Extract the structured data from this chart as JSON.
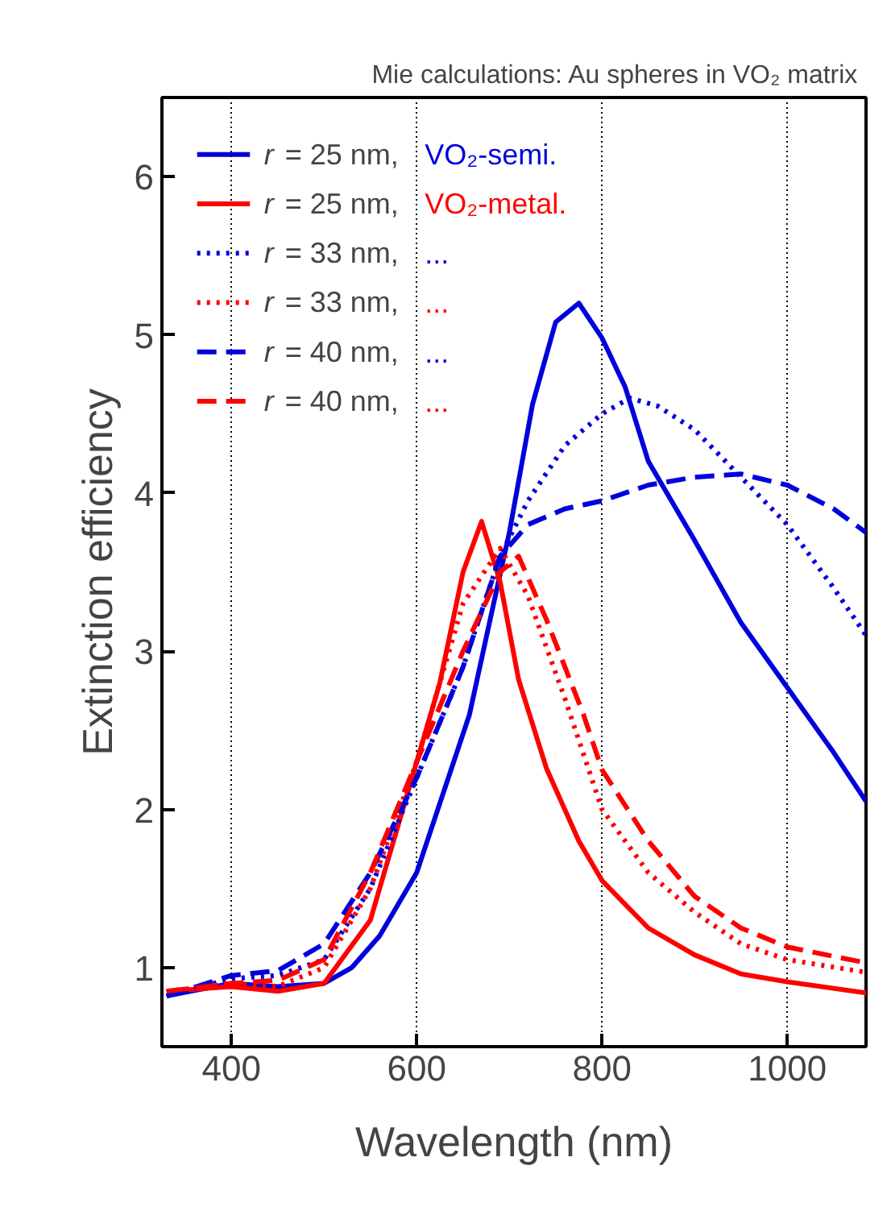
{
  "chart_data": {
    "type": "line",
    "title": "Mie calculations:  Au spheres in VO₂ matrix",
    "xlabel": "Wavelength (nm)",
    "ylabel": "Extinction efficiency",
    "xlim": [
      325,
      1085
    ],
    "ylim": [
      0.5,
      6.5
    ],
    "xticks": [
      400,
      600,
      800,
      1000
    ],
    "yticks": [
      1,
      2,
      3,
      4,
      5,
      6
    ],
    "grid": "x",
    "legend": "top left",
    "series": [
      {
        "name": "r = 25 nm, VO₂-semi.",
        "color": "#0000dd",
        "line_style": "solid",
        "x": [
          330,
          400,
          450,
          500,
          530,
          560,
          600,
          657,
          683,
          700,
          725,
          750,
          775,
          800,
          825,
          850,
          900,
          950,
          1000,
          1050,
          1085
        ],
        "values": [
          0.82,
          0.9,
          0.88,
          0.9,
          1.0,
          1.2,
          1.6,
          2.6,
          3.3,
          3.75,
          4.56,
          5.08,
          5.2,
          4.98,
          4.67,
          4.2,
          3.7,
          3.18,
          2.77,
          2.36,
          2.05
        ]
      },
      {
        "name": "r = 25 nm, VO₂-metal.",
        "color": "#ff0000",
        "line_style": "solid",
        "x": [
          330,
          400,
          450,
          500,
          550,
          600,
          625,
          650,
          670,
          690,
          710,
          740,
          775,
          800,
          825,
          850,
          900,
          950,
          1000,
          1085
        ],
        "values": [
          0.85,
          0.88,
          0.85,
          0.9,
          1.3,
          2.3,
          2.8,
          3.5,
          3.82,
          3.44,
          2.82,
          2.26,
          1.8,
          1.55,
          1.4,
          1.25,
          1.08,
          0.96,
          0.91,
          0.84
        ]
      },
      {
        "name": "r = 33 nm, ...",
        "color": "#0000dd",
        "line_style": "dotted",
        "x": [
          330,
          400,
          450,
          500,
          550,
          600,
          650,
          690,
          720,
          760,
          800,
          830,
          860,
          900,
          950,
          1000,
          1050,
          1085
        ],
        "values": [
          0.82,
          0.93,
          0.95,
          1.05,
          1.5,
          2.2,
          2.9,
          3.6,
          3.95,
          4.3,
          4.5,
          4.6,
          4.55,
          4.4,
          4.1,
          3.8,
          3.4,
          3.1
        ]
      },
      {
        "name": "r = 33 nm, ...",
        "color": "#ff0000",
        "line_style": "dotted",
        "x": [
          330,
          400,
          450,
          500,
          550,
          600,
          650,
          690,
          720,
          760,
          800,
          850,
          900,
          950,
          1000,
          1085
        ],
        "values": [
          0.85,
          0.9,
          0.88,
          1.0,
          1.5,
          2.3,
          3.3,
          3.65,
          3.35,
          2.7,
          2.0,
          1.6,
          1.35,
          1.15,
          1.05,
          0.97
        ]
      },
      {
        "name": "r = 40 nm, ...",
        "color": "#0000dd",
        "line_style": "dashed",
        "x": [
          330,
          400,
          450,
          500,
          550,
          600,
          650,
          690,
          720,
          760,
          800,
          850,
          900,
          950,
          1000,
          1050,
          1085
        ],
        "values": [
          0.82,
          0.95,
          0.98,
          1.15,
          1.6,
          2.2,
          2.9,
          3.6,
          3.8,
          3.9,
          3.95,
          4.05,
          4.1,
          4.12,
          4.05,
          3.9,
          3.75
        ]
      },
      {
        "name": "r = 40 nm, ...",
        "color": "#ff0000",
        "line_style": "dashed",
        "x": [
          330,
          400,
          450,
          500,
          550,
          600,
          650,
          690,
          710,
          740,
          780,
          800,
          850,
          900,
          950,
          1000,
          1085
        ],
        "values": [
          0.85,
          0.9,
          0.92,
          1.05,
          1.6,
          2.3,
          3.0,
          3.5,
          3.6,
          3.2,
          2.6,
          2.25,
          1.8,
          1.45,
          1.25,
          1.13,
          1.03
        ]
      }
    ]
  }
}
